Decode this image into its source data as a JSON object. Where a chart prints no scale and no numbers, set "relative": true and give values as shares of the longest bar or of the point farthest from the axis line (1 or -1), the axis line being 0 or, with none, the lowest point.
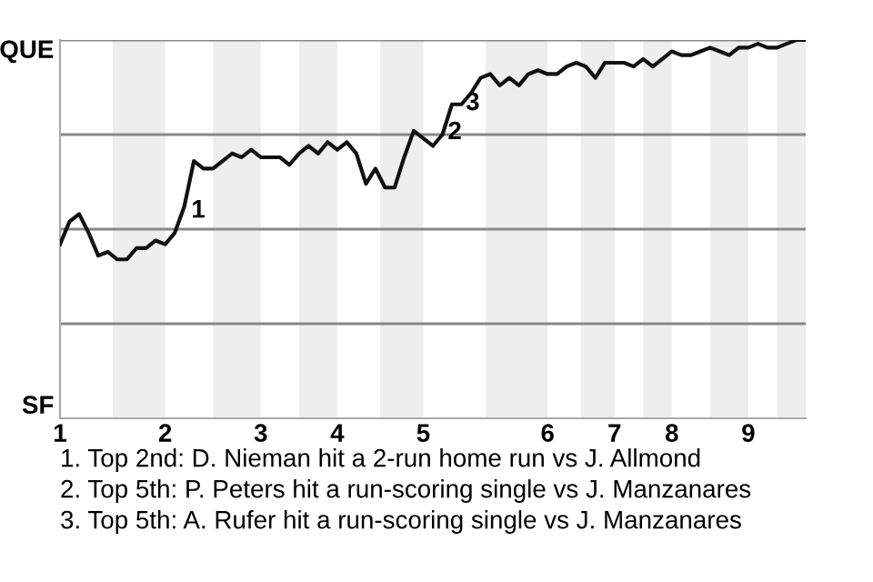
{
  "chart_data": {
    "type": "line",
    "categories": [
      "1",
      null,
      null,
      null,
      null,
      null,
      null,
      null,
      null,
      null,
      null,
      "2",
      null,
      null,
      null,
      null,
      null,
      null,
      null,
      null,
      null,
      "3",
      null,
      null,
      null,
      null,
      null,
      null,
      null,
      "4",
      null,
      null,
      null,
      null,
      null,
      null,
      null,
      null,
      "5",
      null,
      null,
      null,
      null,
      null,
      null,
      null,
      null,
      null,
      null,
      null,
      null,
      "6",
      null,
      null,
      null,
      null,
      null,
      null,
      "7",
      null,
      null,
      null,
      null,
      null,
      "8",
      null,
      null,
      null,
      null,
      null,
      null,
      null,
      "9",
      null,
      null,
      null,
      null,
      null,
      null
    ],
    "relative": true,
    "series": [
      {
        "color": "#111111",
        "values": [
          0.46,
          0.52,
          0.54,
          0.49,
          0.43,
          0.44,
          0.42,
          0.42,
          0.45,
          0.45,
          0.47,
          0.46,
          0.49,
          0.56,
          0.68,
          0.66,
          0.66,
          0.68,
          0.7,
          0.69,
          0.71,
          0.69,
          0.69,
          0.69,
          0.67,
          0.7,
          0.72,
          0.7,
          0.73,
          0.71,
          0.73,
          0.7,
          0.62,
          0.66,
          0.61,
          0.61,
          0.69,
          0.76,
          0.74,
          0.72,
          0.75,
          0.83,
          0.83,
          0.86,
          0.9,
          0.91,
          0.88,
          0.9,
          0.88,
          0.91,
          0.92,
          0.91,
          0.91,
          0.93,
          0.94,
          0.93,
          0.9,
          0.94,
          0.94,
          0.94,
          0.93,
          0.95,
          0.93,
          0.95,
          0.97,
          0.96,
          0.96,
          0.97,
          0.98,
          0.97,
          0.96,
          0.98,
          0.98,
          0.99,
          0.98,
          0.98,
          0.99,
          1.0,
          1.0
        ]
      }
    ],
    "ref_lines": [
      {
        "axis": "y",
        "value": 0.25,
        "color": "#888888"
      },
      {
        "axis": "y",
        "value": 0.5,
        "color": "#888888"
      },
      {
        "axis": "y",
        "value": 0.75,
        "color": "#888888"
      },
      {
        "axis": "y",
        "value": 1,
        "color": "#888888"
      }
    ],
    "annotations": [
      "QUE",
      "SF",
      "1",
      "2",
      "3",
      "1. Top 2nd: D. Nieman hit a 2-run home run vs J. Allmond",
      "2. Top 5th: P. Peters hit a run-scoring single vs J. Manzanares",
      "3. Top 5th: A. Rufer hit a run-scoring single vs J. Manzanares"
    ]
  }
}
